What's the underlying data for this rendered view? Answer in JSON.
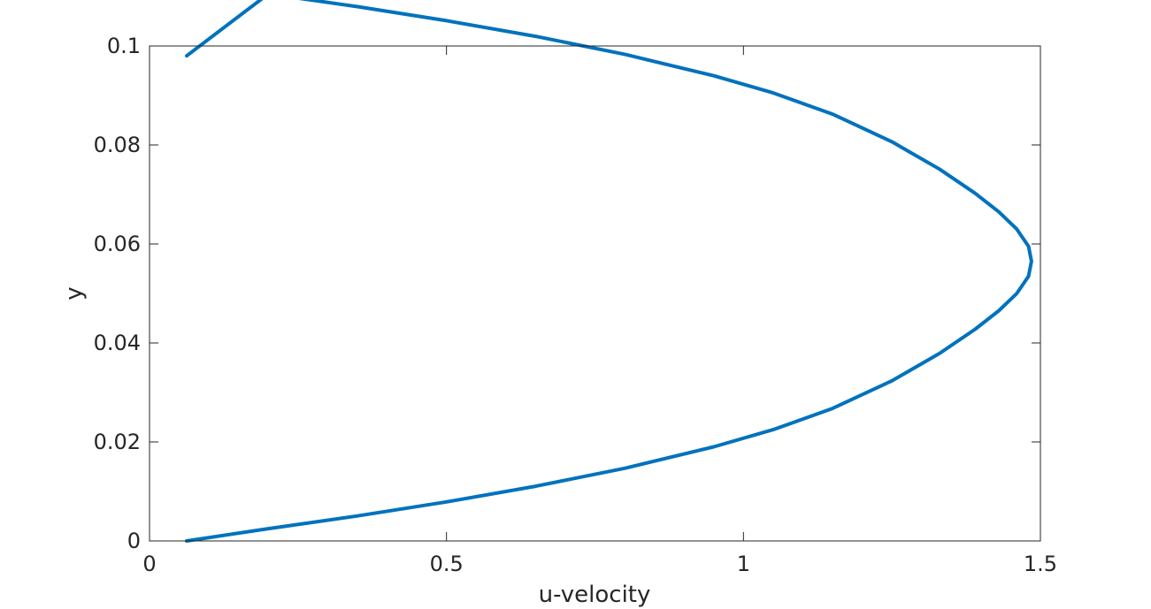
{
  "chart_data": {
    "type": "line",
    "title": "",
    "xlabel": "u-velocity",
    "ylabel": "y",
    "xlim": [
      0,
      1.5
    ],
    "ylim": [
      0,
      0.1
    ],
    "xticks": [
      0,
      0.5,
      1,
      1.5
    ],
    "xtick_labels": [
      "0",
      "0.5",
      "1",
      "1.5"
    ],
    "yticks": [
      0,
      0.02,
      0.04,
      0.06,
      0.08,
      0.1
    ],
    "ytick_labels": [
      "0",
      "0.02",
      "0.04",
      "0.06",
      "0.08",
      "0.1"
    ],
    "grid": false,
    "legend": "none",
    "series": [
      {
        "color": "#0072BD",
        "x": [
          0.0625,
          0.2,
          0.35,
          0.5,
          0.65,
          0.8,
          0.95,
          1.05,
          1.15,
          1.25,
          1.33,
          1.39,
          1.43,
          1.46,
          1.48,
          1.485,
          1.48,
          1.46,
          1.43,
          1.39,
          1.33,
          1.25,
          1.15,
          1.05,
          0.95,
          0.8,
          0.65,
          0.5,
          0.35,
          0.2,
          0.0625
        ],
        "y": [
          0.0,
          0.00249,
          0.00505,
          0.00789,
          0.01105,
          0.01468,
          0.01902,
          0.02249,
          0.02677,
          0.03235,
          0.03787,
          0.04277,
          0.04651,
          0.04997,
          0.05349,
          0.0565,
          0.05951,
          0.06303,
          0.06649,
          0.07023,
          0.07513,
          0.08065,
          0.08623,
          0.09051,
          0.09398,
          0.09832,
          0.10195,
          0.10511,
          0.10795,
          0.11051,
          0.098
        ]
      }
    ]
  }
}
